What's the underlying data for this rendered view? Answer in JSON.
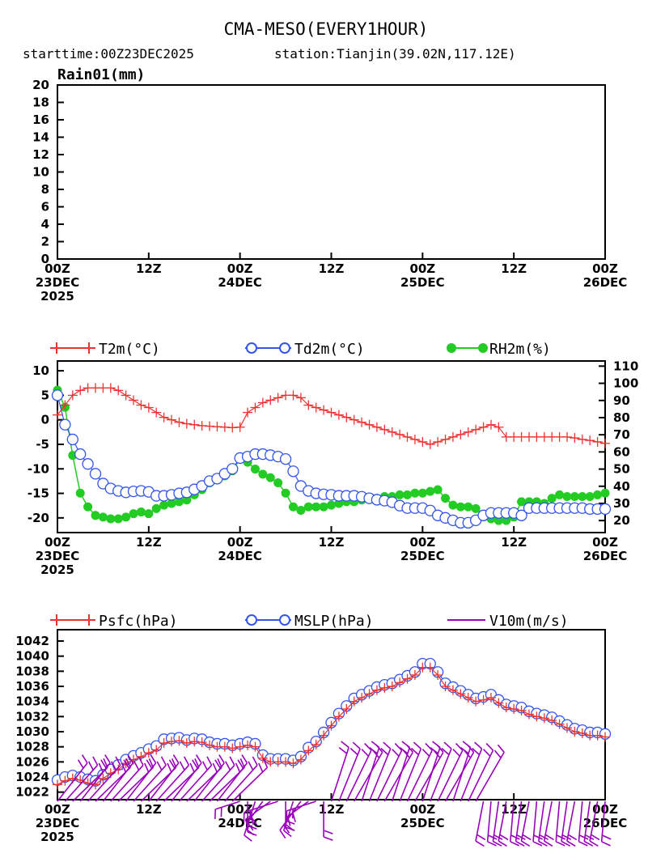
{
  "header": {
    "title": "CMA-MESO(EVERY1HOUR)",
    "starttime": "starttime:00Z23DEC2025",
    "station": "station:Tianjin(39.02N,117.12E)"
  },
  "time_axis": {
    "tick_hours": [
      0,
      12,
      24,
      36,
      48,
      60,
      72
    ],
    "labels": [
      [
        "00Z",
        "23DEC",
        "2025"
      ],
      [
        "12Z"
      ],
      [
        "00Z",
        "24DEC"
      ],
      [
        "12Z"
      ],
      [
        "00Z",
        "25DEC"
      ],
      [
        "12Z"
      ],
      [
        "00Z",
        "26DEC"
      ]
    ]
  },
  "colors": {
    "t2m": "#ee3333",
    "td2m": "#3355ee",
    "rh2m": "#22cc22",
    "psfc": "#ee3333",
    "mslp": "#3355ee",
    "wind": "#9900bb"
  },
  "chart_data": [
    {
      "type": "bar",
      "title": "Rain01(mm)",
      "ylim": [
        0,
        20
      ],
      "yticks": [
        0,
        2,
        4,
        6,
        8,
        10,
        12,
        14,
        16,
        18,
        20
      ],
      "x_hours_range": [
        0,
        72
      ],
      "series": [
        {
          "name": "Rain01(mm)",
          "values": []
        }
      ]
    },
    {
      "type": "line",
      "legend": [
        "T2m(°C)",
        "Td2m(°C)",
        "RH2m(%)"
      ],
      "ylim_left": [
        -23,
        12
      ],
      "yticks_left": [
        10,
        5,
        0,
        -5,
        -10,
        -15,
        -20
      ],
      "ylim_right": [
        13,
        113
      ],
      "yticks_right": [
        110,
        100,
        90,
        80,
        70,
        60,
        50,
        40,
        30,
        20
      ],
      "x_hours_range": [
        0,
        72
      ],
      "series": [
        {
          "name": "T2m(°C)",
          "axis": "left",
          "marker": "plus",
          "x": [
            0,
            1,
            2,
            3,
            4,
            5,
            6,
            7,
            8,
            9,
            10,
            11,
            12,
            13,
            14,
            15,
            16,
            17,
            18,
            19,
            20,
            21,
            22,
            23,
            24,
            25,
            26,
            27,
            28,
            29,
            30,
            31,
            32,
            33,
            34,
            35,
            36,
            37,
            38,
            39,
            40,
            41,
            42,
            43,
            44,
            45,
            46,
            47,
            48,
            49,
            50,
            51,
            52,
            53,
            54,
            55,
            56,
            57,
            58,
            59,
            60,
            61,
            62,
            63,
            64,
            65,
            66,
            67,
            68,
            69,
            70,
            71,
            72
          ],
          "values": [
            1,
            3,
            5,
            6,
            6.5,
            6.5,
            6.5,
            6.5,
            6,
            5,
            4,
            3,
            2.5,
            1.5,
            0.5,
            0,
            -0.5,
            -0.8,
            -1,
            -1.2,
            -1.3,
            -1.4,
            -1.5,
            -1.6,
            -1.5,
            1.5,
            2.5,
            3.5,
            4,
            4.5,
            5,
            5,
            4.5,
            3,
            2.5,
            2,
            1.5,
            1,
            0.5,
            0,
            -0.5,
            -1,
            -1.5,
            -2,
            -2.5,
            -3,
            -3.5,
            -4,
            -4.5,
            -5,
            -4.5,
            -4,
            -3.5,
            -3,
            -2.5,
            -2,
            -1.5,
            -1,
            -1.5,
            -3.5,
            -3.5,
            -3.5,
            -3.5,
            -3.5,
            -3.5,
            -3.5,
            -3.5,
            -3.5,
            -3.7,
            -4,
            -4.2,
            -4.5,
            -4.8
          ]
        },
        {
          "name": "Td2m(°C)",
          "axis": "left",
          "marker": "circle",
          "x": [
            0,
            1,
            2,
            3,
            4,
            5,
            6,
            7,
            8,
            9,
            10,
            11,
            12,
            13,
            14,
            15,
            16,
            17,
            18,
            19,
            20,
            21,
            22,
            23,
            24,
            25,
            26,
            27,
            28,
            29,
            30,
            31,
            32,
            33,
            34,
            35,
            36,
            37,
            38,
            39,
            40,
            41,
            42,
            43,
            44,
            45,
            46,
            47,
            48,
            49,
            50,
            51,
            52,
            53,
            54,
            55,
            56,
            57,
            58,
            59,
            60,
            61,
            62,
            63,
            64,
            65,
            66,
            67,
            68,
            69,
            70,
            71,
            72
          ],
          "values": [
            5,
            -1,
            -4,
            -7,
            -9,
            -11,
            -13,
            -14,
            -14.5,
            -14.8,
            -14.6,
            -14.5,
            -14.7,
            -15.5,
            -15.5,
            -15.3,
            -15,
            -14.8,
            -14.2,
            -13.5,
            -12.5,
            -12,
            -11,
            -10,
            -7.8,
            -7.5,
            -7,
            -7,
            -7.2,
            -7.5,
            -8,
            -10.5,
            -13.5,
            -14.5,
            -15,
            -15.2,
            -15.3,
            -15.5,
            -15.5,
            -15.5,
            -15.7,
            -16,
            -16.3,
            -16.5,
            -16.8,
            -17.5,
            -18,
            -18,
            -18,
            -18.5,
            -19.5,
            -20,
            -20.5,
            -21,
            -21,
            -20.5,
            -19.5,
            -19,
            -19,
            -19,
            -19,
            -19.5,
            -18,
            -18,
            -18,
            -18,
            -18,
            -18,
            -18,
            -18,
            -18.2,
            -18.2,
            -18.2
          ]
        },
        {
          "name": "RH2m(%)",
          "axis": "right",
          "marker": "dot",
          "x": [
            0,
            1,
            2,
            3,
            4,
            5,
            6,
            7,
            8,
            9,
            10,
            11,
            12,
            13,
            14,
            15,
            16,
            17,
            18,
            19,
            20,
            21,
            22,
            23,
            24,
            25,
            26,
            27,
            28,
            29,
            30,
            31,
            32,
            33,
            34,
            35,
            36,
            37,
            38,
            39,
            40,
            41,
            42,
            43,
            44,
            45,
            46,
            47,
            48,
            49,
            50,
            51,
            52,
            53,
            54,
            55,
            56,
            57,
            58,
            59,
            60,
            61,
            62,
            63,
            64,
            65,
            66,
            67,
            68,
            69,
            70,
            71,
            72
          ],
          "values": [
            96,
            86,
            58,
            36,
            28,
            23,
            22,
            21,
            21,
            22,
            24,
            25,
            24,
            27,
            29,
            30,
            31,
            32,
            35,
            38,
            42,
            44,
            46,
            49,
            56,
            54,
            50,
            47,
            45,
            42,
            36,
            28,
            26,
            28,
            28,
            28,
            29,
            30,
            31,
            31,
            32,
            33,
            33,
            34,
            34,
            35,
            35,
            36,
            36,
            37,
            38,
            33,
            29,
            28,
            28,
            27,
            23,
            21,
            20,
            20,
            22,
            31,
            31,
            31,
            30,
            33,
            35,
            34,
            34,
            34,
            34,
            35,
            36
          ]
        }
      ]
    },
    {
      "type": "line",
      "legend": [
        "Psfc(hPa)",
        "MSLP(hPa)",
        "V10m(m/s)"
      ],
      "ylim": [
        1021,
        1043.5
      ],
      "yticks": [
        1022,
        1024,
        1026,
        1028,
        1030,
        1032,
        1034,
        1036,
        1038,
        1040,
        1042
      ],
      "x_hours_range": [
        0,
        72
      ],
      "series": [
        {
          "name": "Psfc(hPa)",
          "marker": "plus",
          "x": [
            0,
            1,
            2,
            3,
            4,
            5,
            6,
            7,
            8,
            9,
            10,
            11,
            12,
            13,
            14,
            15,
            16,
            17,
            18,
            19,
            20,
            21,
            22,
            23,
            24,
            25,
            26,
            27,
            28,
            29,
            30,
            31,
            32,
            33,
            34,
            35,
            36,
            37,
            38,
            39,
            40,
            41,
            42,
            43,
            44,
            45,
            46,
            47,
            48,
            49,
            50,
            51,
            52,
            53,
            54,
            55,
            56,
            57,
            58,
            59,
            60,
            61,
            62,
            63,
            64,
            65,
            66,
            67,
            68,
            69,
            70,
            71,
            72
          ],
          "values": [
            1023,
            1023.5,
            1023.8,
            1023.6,
            1023.2,
            1023,
            1023.8,
            1024.5,
            1025,
            1025.8,
            1026.3,
            1026.7,
            1027.2,
            1027.6,
            1028.5,
            1028.7,
            1028.8,
            1028.5,
            1028.7,
            1028.6,
            1028.2,
            1028,
            1028,
            1027.8,
            1028,
            1028.2,
            1028,
            1026.5,
            1026,
            1026,
            1026,
            1025.8,
            1026.3,
            1027.5,
            1028.3,
            1029.5,
            1030.8,
            1032,
            1033,
            1034,
            1034.5,
            1035,
            1035.5,
            1035.8,
            1036,
            1036.5,
            1037,
            1037.5,
            1038.5,
            1038.5,
            1037.5,
            1036,
            1035.5,
            1035,
            1034.5,
            1034,
            1034.2,
            1034.5,
            1033.8,
            1033.2,
            1033,
            1032.8,
            1032.3,
            1032,
            1031.8,
            1031.5,
            1031,
            1030.5,
            1030,
            1029.8,
            1029.5,
            1029.5,
            1029.3
          ]
        },
        {
          "name": "MSLP(hPa)",
          "marker": "circle",
          "x": [
            0,
            1,
            2,
            3,
            4,
            5,
            6,
            7,
            8,
            9,
            10,
            11,
            12,
            13,
            14,
            15,
            16,
            17,
            18,
            19,
            20,
            21,
            22,
            23,
            24,
            25,
            26,
            27,
            28,
            29,
            30,
            31,
            32,
            33,
            34,
            35,
            36,
            37,
            38,
            39,
            40,
            41,
            42,
            43,
            44,
            45,
            46,
            47,
            48,
            49,
            50,
            51,
            52,
            53,
            54,
            55,
            56,
            57,
            58,
            59,
            60,
            61,
            62,
            63,
            64,
            65,
            66,
            67,
            68,
            69,
            70,
            71,
            72
          ],
          "values": [
            1023.6,
            1024,
            1024.2,
            1024,
            1023.7,
            1023.5,
            1024.3,
            1025,
            1025.6,
            1026.3,
            1026.8,
            1027.2,
            1027.7,
            1028.1,
            1029,
            1029.1,
            1029.2,
            1028.9,
            1029.1,
            1029,
            1028.6,
            1028.4,
            1028.4,
            1028.2,
            1028.4,
            1028.6,
            1028.4,
            1026.9,
            1026.4,
            1026.4,
            1026.4,
            1026.2,
            1026.7,
            1027.9,
            1028.7,
            1029.9,
            1031.2,
            1032.4,
            1033.4,
            1034.4,
            1034.9,
            1035.4,
            1035.9,
            1036.2,
            1036.4,
            1036.9,
            1037.4,
            1037.9,
            1039,
            1039,
            1037.9,
            1036.4,
            1035.9,
            1035.4,
            1034.9,
            1034.4,
            1034.6,
            1034.9,
            1034.2,
            1033.6,
            1033.4,
            1033.2,
            1032.7,
            1032.4,
            1032.2,
            1031.9,
            1031.4,
            1030.9,
            1030.4,
            1030.2,
            1029.9,
            1029.9,
            1029.7
          ]
        },
        {
          "name": "V10m(m/s)",
          "marker": "barb"
        }
      ]
    }
  ]
}
